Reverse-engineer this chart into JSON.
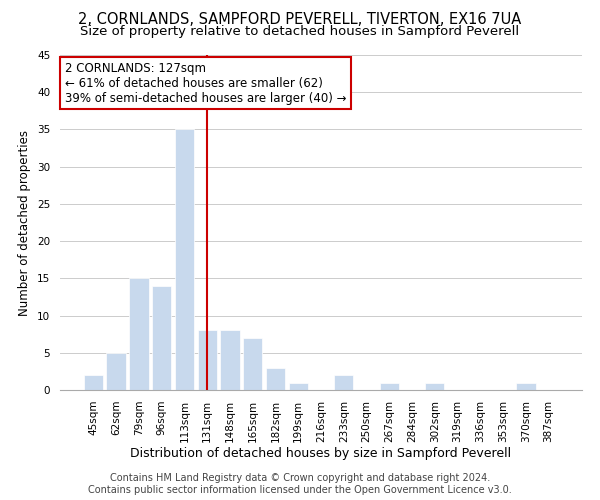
{
  "title": "2, CORNLANDS, SAMPFORD PEVERELL, TIVERTON, EX16 7UA",
  "subtitle": "Size of property relative to detached houses in Sampford Peverell",
  "xlabel": "Distribution of detached houses by size in Sampford Peverell",
  "ylabel": "Number of detached properties",
  "bar_labels": [
    "45sqm",
    "62sqm",
    "79sqm",
    "96sqm",
    "113sqm",
    "131sqm",
    "148sqm",
    "165sqm",
    "182sqm",
    "199sqm",
    "216sqm",
    "233sqm",
    "250sqm",
    "267sqm",
    "284sqm",
    "302sqm",
    "319sqm",
    "336sqm",
    "353sqm",
    "370sqm",
    "387sqm"
  ],
  "bar_values": [
    2,
    5,
    15,
    14,
    35,
    8,
    8,
    7,
    3,
    1,
    0,
    2,
    0,
    1,
    0,
    1,
    0,
    0,
    0,
    1,
    0
  ],
  "bar_color": "#c8d9ed",
  "bar_edge_color": "#ffffff",
  "vline_x": 5,
  "vline_color": "#cc0000",
  "annotation_line1": "2 CORNLANDS: 127sqm",
  "annotation_line2": "← 61% of detached houses are smaller (62)",
  "annotation_line3": "39% of semi-detached houses are larger (40) →",
  "annotation_box_edgecolor": "#cc0000",
  "annotation_box_facecolor": "#ffffff",
  "ylim": [
    0,
    45
  ],
  "yticks": [
    0,
    5,
    10,
    15,
    20,
    25,
    30,
    35,
    40,
    45
  ],
  "footer_line1": "Contains HM Land Registry data © Crown copyright and database right 2024.",
  "footer_line2": "Contains public sector information licensed under the Open Government Licence v3.0.",
  "background_color": "#ffffff",
  "grid_color": "#cccccc",
  "title_fontsize": 10.5,
  "subtitle_fontsize": 9.5,
  "xlabel_fontsize": 9,
  "ylabel_fontsize": 8.5,
  "tick_fontsize": 7.5,
  "annotation_fontsize": 8.5,
  "footer_fontsize": 7
}
